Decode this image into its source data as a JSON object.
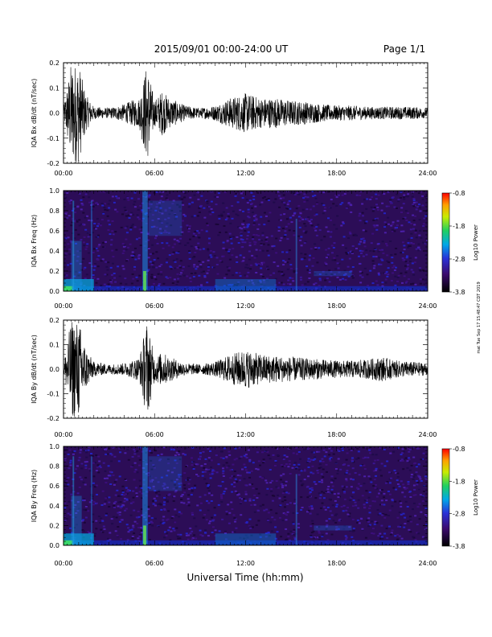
{
  "header": {
    "title": "2015/09/01  00:00-24:00 UT",
    "page": "Page 1/1"
  },
  "footer": {
    "xlabel": "Universal Time (hh:mm)"
  },
  "side_stamp": "mat Tue Sep 17 15:48:47 CDT 2019",
  "colorbar": {
    "label": "Log10 Power",
    "ticks": [
      "-0.8",
      "-1.8",
      "-2.8",
      "-3.8"
    ]
  },
  "chart_data": [
    {
      "type": "line",
      "ylabel": "IQA Bx dB/dt (nT/sec)",
      "xlim": [
        "00:00",
        "24:00"
      ],
      "x_ticks": [
        "00:00",
        "06:00",
        "12:00",
        "18:00",
        "24:00"
      ],
      "ylim": [
        -0.2,
        0.2
      ],
      "y_ticks": [
        "0.2",
        "0.1",
        "0.0",
        "-0.1",
        "-0.2"
      ],
      "series": [
        {
          "x": [
            "00:00",
            "00:30",
            "01:00",
            "01:30",
            "02:00",
            "03:00",
            "04:00",
            "04:30",
            "05:00",
            "05:30",
            "06:00",
            "06:30",
            "07:00",
            "08:00",
            "09:00",
            "10:00",
            "11:00",
            "12:00",
            "13:00",
            "14:00",
            "15:00",
            "16:00",
            "17:00",
            "18:00",
            "19:00",
            "20:00",
            "21:00",
            "22:00",
            "23:00",
            "24:00"
          ],
          "envelope": [
            0.02,
            0.2,
            0.2,
            0.07,
            0.025,
            0.02,
            0.035,
            0.05,
            0.06,
            0.2,
            0.05,
            0.09,
            0.06,
            0.03,
            0.02,
            0.03,
            0.06,
            0.08,
            0.06,
            0.06,
            0.05,
            0.045,
            0.035,
            0.03,
            0.03,
            0.025,
            0.025,
            0.025,
            0.025,
            0.02
          ]
        }
      ]
    },
    {
      "type": "heatmap",
      "ylabel": "IQA Bx Freq (Hz)",
      "xlim": [
        "00:00",
        "24:00"
      ],
      "x_ticks": [
        "00:00",
        "06:00",
        "12:00",
        "18:00",
        "24:00"
      ],
      "ylim": [
        0.0,
        1.0
      ],
      "y_ticks": [
        "1.0",
        "0.8",
        "0.6",
        "0.4",
        "0.2",
        "0.0"
      ],
      "zlim": [
        -3.8,
        -0.8
      ]
    },
    {
      "type": "line",
      "ylabel": "IQA By dB/dt (nT/sec)",
      "xlim": [
        "00:00",
        "24:00"
      ],
      "x_ticks": [
        "00:00",
        "06:00",
        "12:00",
        "18:00",
        "24:00"
      ],
      "ylim": [
        -0.2,
        0.2
      ],
      "y_ticks": [
        "0.2",
        "0.1",
        "0.0",
        "-0.1",
        "-0.2"
      ],
      "series": [
        {
          "x": [
            "00:00",
            "00:30",
            "01:00",
            "01:30",
            "02:00",
            "03:00",
            "04:00",
            "04:30",
            "05:00",
            "05:30",
            "06:00",
            "06:30",
            "07:00",
            "08:00",
            "09:00",
            "10:00",
            "11:00",
            "12:00",
            "13:00",
            "14:00",
            "15:00",
            "16:00",
            "17:00",
            "18:00",
            "19:00",
            "20:00",
            "21:00",
            "22:00",
            "23:00",
            "24:00"
          ],
          "envelope": [
            0.02,
            0.2,
            0.2,
            0.08,
            0.03,
            0.02,
            0.025,
            0.035,
            0.05,
            0.2,
            0.05,
            0.07,
            0.05,
            0.025,
            0.02,
            0.03,
            0.06,
            0.08,
            0.06,
            0.055,
            0.05,
            0.045,
            0.04,
            0.035,
            0.035,
            0.04,
            0.05,
            0.035,
            0.03,
            0.025
          ]
        }
      ]
    },
    {
      "type": "heatmap",
      "ylabel": "IQA By Freq (Hz)",
      "xlim": [
        "00:00",
        "24:00"
      ],
      "x_ticks": [
        "00:00",
        "06:00",
        "12:00",
        "18:00",
        "24:00"
      ],
      "ylim": [
        0.0,
        1.0
      ],
      "y_ticks": [
        "1.0",
        "0.8",
        "0.6",
        "0.4",
        "0.2",
        "0.0"
      ],
      "zlim": [
        -3.8,
        -0.8
      ]
    }
  ]
}
